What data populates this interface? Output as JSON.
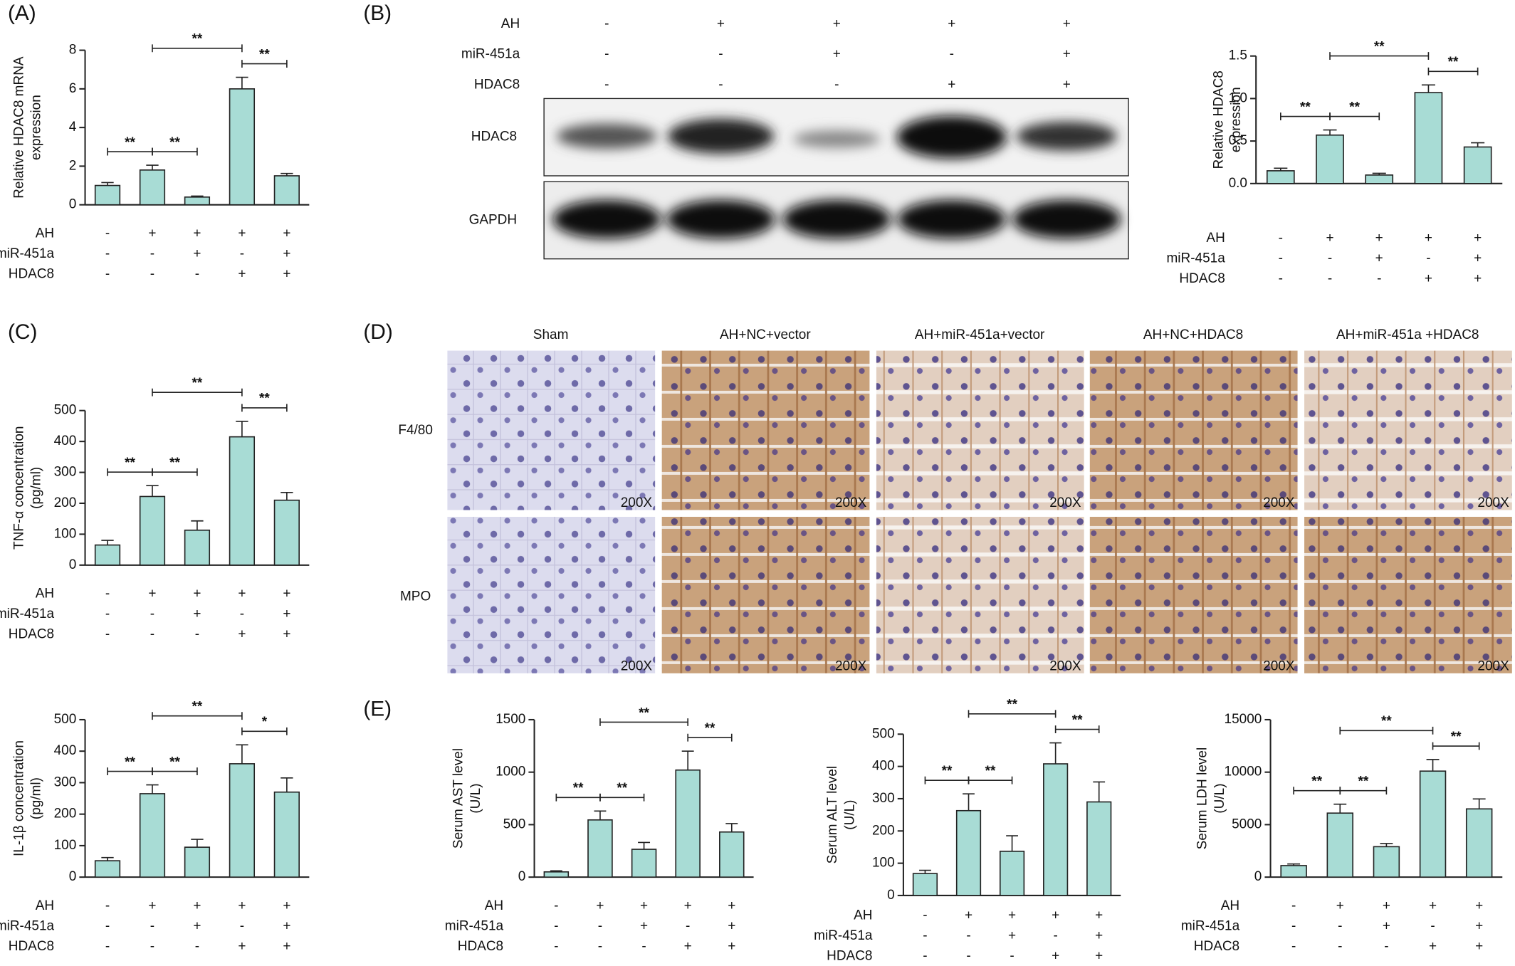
{
  "panel_labels": [
    "(A)",
    "(B)",
    "(C)",
    "(D)",
    "(E)"
  ],
  "blot": {
    "conditions": [
      {
        "name": "AH",
        "signs": [
          "-",
          "+",
          "+",
          "+",
          "+"
        ]
      },
      {
        "name": "miR-451a",
        "signs": [
          "-",
          "-",
          "+",
          "-",
          "+"
        ]
      },
      {
        "name": "HDAC8",
        "signs": [
          "-",
          "-",
          "-",
          "+",
          "+"
        ]
      }
    ],
    "bands": [
      "HDAC8",
      "GAPDH"
    ]
  },
  "ihc": {
    "columns": [
      "Sham",
      "AH+NC+vector",
      "AH+miR-451a+vector",
      "AH+NC+HDAC8",
      "AH+miR-451a +HDAC8"
    ],
    "rows": [
      "F4/80",
      "MPO"
    ],
    "magnification": "200X"
  },
  "chart_data": [
    {
      "type": "bar",
      "ylabel": [
        "Relative HDAC8 mRNA",
        "expression"
      ],
      "values": [
        1.0,
        1.8,
        0.4,
        6.0,
        1.5
      ],
      "errors": [
        0.15,
        0.25,
        0.05,
        0.6,
        0.12
      ],
      "color": "#a8dcd5",
      "ylim": [
        0,
        8
      ],
      "yticks": [
        0,
        2,
        4,
        6,
        8
      ],
      "conditions": [
        {
          "name": "AH",
          "signs": [
            "-",
            "+",
            "+",
            "+",
            "+"
          ]
        },
        {
          "name": "miR-451a",
          "signs": [
            "-",
            "-",
            "+",
            "-",
            "+"
          ]
        },
        {
          "name": "HDAC8",
          "signs": [
            "-",
            "-",
            "-",
            "+",
            "+"
          ]
        }
      ],
      "significance": [
        {
          "between": [
            0,
            1
          ],
          "label": "**"
        },
        {
          "between": [
            1,
            2
          ],
          "label": "**"
        },
        {
          "between": [
            1,
            3
          ],
          "label": "**"
        },
        {
          "between": [
            3,
            4
          ],
          "label": "**"
        }
      ]
    },
    {
      "type": "bar",
      "ylabel": [
        "Relative HDAC8",
        "expression"
      ],
      "values": [
        0.15,
        0.57,
        0.1,
        1.07,
        0.43
      ],
      "errors": [
        0.03,
        0.06,
        0.02,
        0.09,
        0.05
      ],
      "color": "#a8dcd5",
      "ylim": [
        0,
        1.5
      ],
      "yticks": [
        {
          "value": 0,
          "label": "0.0"
        },
        {
          "value": 0.5,
          "label": "0.5"
        },
        {
          "value": 1,
          "label": "1.0"
        },
        {
          "value": 1.5,
          "label": "1.5"
        }
      ],
      "conditions": [
        {
          "name": "AH",
          "signs": [
            "-",
            "+",
            "+",
            "+",
            "+"
          ]
        },
        {
          "name": "miR-451a",
          "signs": [
            "-",
            "-",
            "+",
            "-",
            "+"
          ]
        },
        {
          "name": "HDAC8",
          "signs": [
            "-",
            "-",
            "-",
            "+",
            "+"
          ]
        }
      ],
      "significance": [
        {
          "between": [
            0,
            1
          ],
          "label": "**"
        },
        {
          "between": [
            1,
            2
          ],
          "label": "**"
        },
        {
          "between": [
            1,
            3
          ],
          "label": "**"
        },
        {
          "between": [
            3,
            4
          ],
          "label": "**"
        }
      ]
    },
    {
      "type": "bar",
      "ylabel": [
        "TNF-α concentration",
        "(pg/ml)"
      ],
      "values": [
        65,
        222,
        113,
        415,
        210
      ],
      "errors": [
        15,
        35,
        30,
        50,
        25
      ],
      "color": "#a8dcd5",
      "ylim": [
        0,
        500
      ],
      "yticks": [
        0,
        100,
        200,
        300,
        400,
        500
      ],
      "conditions": [
        {
          "name": "AH",
          "signs": [
            "-",
            "+",
            "+",
            "+",
            "+"
          ]
        },
        {
          "name": "miR-451a",
          "signs": [
            "-",
            "-",
            "+",
            "-",
            "+"
          ]
        },
        {
          "name": "HDAC8",
          "signs": [
            "-",
            "-",
            "-",
            "+",
            "+"
          ]
        }
      ],
      "significance": [
        {
          "between": [
            0,
            1
          ],
          "label": "**"
        },
        {
          "between": [
            1,
            2
          ],
          "label": "**"
        },
        {
          "between": [
            1,
            3
          ],
          "label": "**"
        },
        {
          "between": [
            3,
            4
          ],
          "label": "**"
        }
      ]
    },
    {
      "type": "bar",
      "ylabel": [
        "IL-1β concentration",
        "(pg/ml)"
      ],
      "values": [
        52,
        265,
        95,
        360,
        270
      ],
      "errors": [
        10,
        28,
        25,
        60,
        45
      ],
      "color": "#a8dcd5",
      "ylim": [
        0,
        500
      ],
      "yticks": [
        0,
        100,
        200,
        300,
        400,
        500
      ],
      "conditions": [
        {
          "name": "AH",
          "signs": [
            "-",
            "+",
            "+",
            "+",
            "+"
          ]
        },
        {
          "name": "miR-451a",
          "signs": [
            "-",
            "-",
            "+",
            "-",
            "+"
          ]
        },
        {
          "name": "HDAC8",
          "signs": [
            "-",
            "-",
            "-",
            "+",
            "+"
          ]
        }
      ],
      "significance": [
        {
          "between": [
            0,
            1
          ],
          "label": "**"
        },
        {
          "between": [
            1,
            2
          ],
          "label": "**"
        },
        {
          "between": [
            1,
            3
          ],
          "label": "**"
        },
        {
          "between": [
            3,
            4
          ],
          "label": "*"
        }
      ]
    },
    {
      "type": "bar",
      "ylabel": [
        "Serum AST level",
        "(U/L)"
      ],
      "values": [
        50,
        545,
        265,
        1020,
        430
      ],
      "errors": [
        10,
        85,
        65,
        180,
        80
      ],
      "color": "#a8dcd5",
      "ylim": [
        0,
        1500
      ],
      "yticks": [
        0,
        500,
        1000,
        1500
      ],
      "conditions": [
        {
          "name": "AH",
          "signs": [
            "-",
            "+",
            "+",
            "+",
            "+"
          ]
        },
        {
          "name": "miR-451a",
          "signs": [
            "-",
            "-",
            "+",
            "-",
            "+"
          ]
        },
        {
          "name": "HDAC8",
          "signs": [
            "-",
            "-",
            "-",
            "+",
            "+"
          ]
        }
      ],
      "significance": [
        {
          "between": [
            0,
            1
          ],
          "label": "**"
        },
        {
          "between": [
            1,
            2
          ],
          "label": "**"
        },
        {
          "between": [
            1,
            3
          ],
          "label": "**"
        },
        {
          "between": [
            3,
            4
          ],
          "label": "**"
        }
      ]
    },
    {
      "type": "bar",
      "ylabel": [
        "Serum ALT level",
        "(U/L)"
      ],
      "values": [
        68,
        263,
        137,
        408,
        290
      ],
      "errors": [
        10,
        52,
        48,
        65,
        62
      ],
      "color": "#a8dcd5",
      "ylim": [
        0,
        500
      ],
      "yticks": [
        0,
        100,
        200,
        300,
        400,
        500
      ],
      "conditions": [
        {
          "name": "AH",
          "signs": [
            "-",
            "+",
            "+",
            "+",
            "+"
          ]
        },
        {
          "name": "miR-451a",
          "signs": [
            "-",
            "-",
            "+",
            "-",
            "+"
          ]
        },
        {
          "name": "HDAC8",
          "signs": [
            "-",
            "-",
            "-",
            "+",
            "+"
          ]
        }
      ],
      "significance": [
        {
          "between": [
            0,
            1
          ],
          "label": "**"
        },
        {
          "between": [
            1,
            2
          ],
          "label": "**"
        },
        {
          "between": [
            1,
            3
          ],
          "label": "**"
        },
        {
          "between": [
            3,
            4
          ],
          "label": "**"
        }
      ]
    },
    {
      "type": "bar",
      "ylabel": [
        "Serum LDH level",
        "(U/L)"
      ],
      "values": [
        1100,
        6100,
        2900,
        10100,
        6500
      ],
      "errors": [
        150,
        850,
        300,
        1100,
        950
      ],
      "color": "#a8dcd5",
      "ylim": [
        0,
        15000
      ],
      "yticks": [
        0,
        5000,
        10000,
        15000
      ],
      "conditions": [
        {
          "name": "AH",
          "signs": [
            "-",
            "+",
            "+",
            "+",
            "+"
          ]
        },
        {
          "name": "miR-451a",
          "signs": [
            "-",
            "-",
            "+",
            "-",
            "+"
          ]
        },
        {
          "name": "HDAC8",
          "signs": [
            "-",
            "-",
            "-",
            "+",
            "+"
          ]
        }
      ],
      "significance": [
        {
          "between": [
            0,
            1
          ],
          "label": "**"
        },
        {
          "between": [
            1,
            2
          ],
          "label": "**"
        },
        {
          "between": [
            1,
            3
          ],
          "label": "**"
        },
        {
          "between": [
            3,
            4
          ],
          "label": "**"
        }
      ]
    }
  ]
}
